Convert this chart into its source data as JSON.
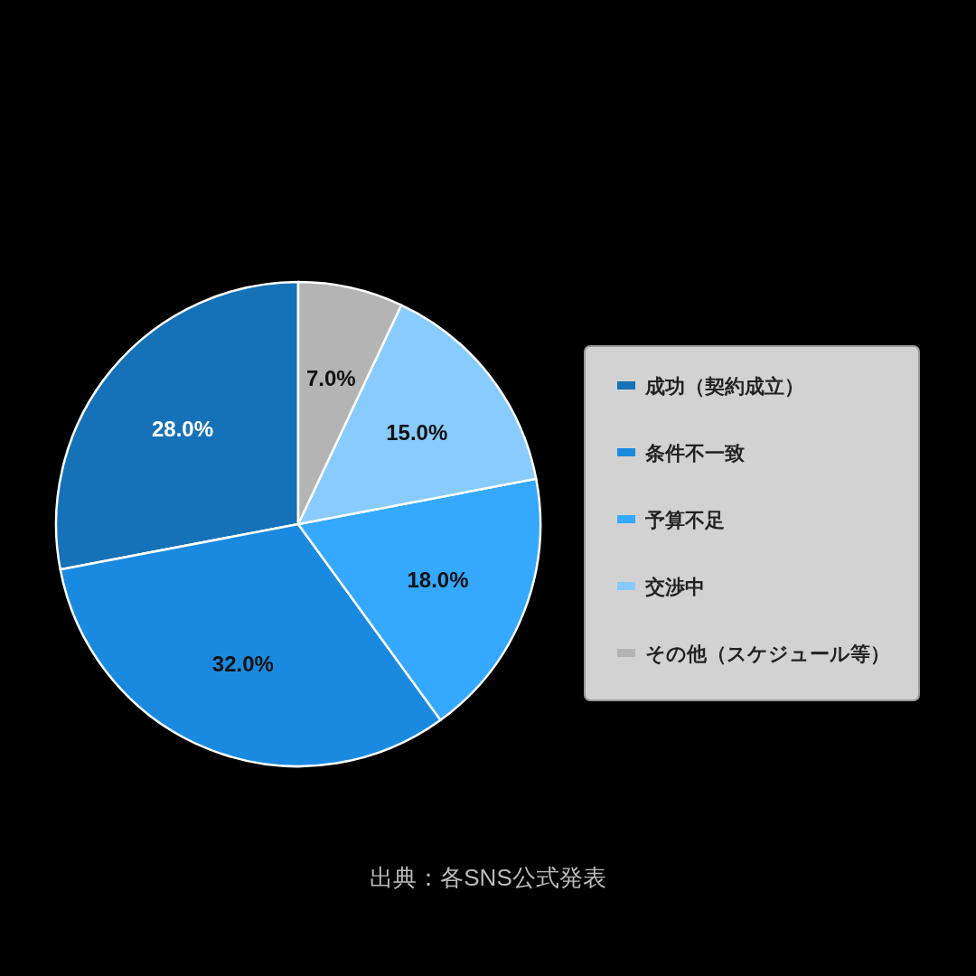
{
  "chart_data": {
    "type": "pie",
    "categories": [
      "成功（契約成立）",
      "条件不一致",
      "予算不足",
      "交渉中",
      "その他（スケジュール等）"
    ],
    "values": [
      28.0,
      32.0,
      18.0,
      15.0,
      7.0
    ],
    "colors": [
      "#1672b8",
      "#1a8ae0",
      "#35a8ff",
      "#87cbff",
      "#b4b4b4"
    ],
    "value_labels": [
      "28.0%",
      "32.0%",
      "18.0%",
      "15.0%",
      "7.0%"
    ],
    "legend": "right",
    "annotations": [
      "出典：各SNS公式発表"
    ]
  }
}
